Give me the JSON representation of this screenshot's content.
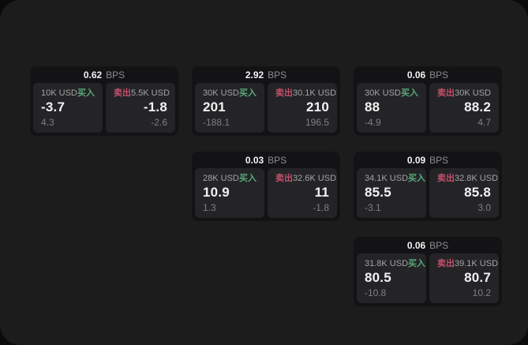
{
  "colors": {
    "page_bg": "#0b0b0b",
    "panel_bg": "#1c1c1d",
    "card_bg": "#131315",
    "tile_bg": "#242427",
    "buy_accent": "#58a87a",
    "sell_accent": "#c2506a",
    "value_text": "#f2f2f3",
    "label_text": "#a2a4a6",
    "muted_text": "#7d7f81",
    "bps_label_text": "#8b8d8f"
  },
  "labels": {
    "buy": "买入",
    "sell": "卖出",
    "bps": "BPS"
  },
  "cards": [
    {
      "bps": "0.62",
      "buy": {
        "amount": "10K USD",
        "value": "-3.7",
        "sub": "4.3"
      },
      "sell": {
        "amount": "5.5K USD",
        "value": "-1.8",
        "sub": "-2.6"
      }
    },
    {
      "bps": "2.92",
      "buy": {
        "amount": "30K USD",
        "value": "201",
        "sub": "-188.1"
      },
      "sell": {
        "amount": "30.1K USD",
        "value": "210",
        "sub": "196.5"
      }
    },
    {
      "bps": "0.06",
      "buy": {
        "amount": "30K USD",
        "value": "88",
        "sub": "-4.9"
      },
      "sell": {
        "amount": "30K USD",
        "value": "88.2",
        "sub": "4.7"
      }
    },
    {
      "bps": "0.03",
      "buy": {
        "amount": "28K USD",
        "value": "10.9",
        "sub": "1.3"
      },
      "sell": {
        "amount": "32.6K USD",
        "value": "11",
        "sub": "-1.8"
      }
    },
    {
      "bps": "0.09",
      "buy": {
        "amount": "34.1K USD",
        "value": "85.5",
        "sub": "-3.1"
      },
      "sell": {
        "amount": "32.8K USD",
        "value": "85.8",
        "sub": "3.0"
      }
    },
    {
      "bps": "0.06",
      "buy": {
        "amount": "31.8K USD",
        "value": "80.5",
        "sub": "-10.8"
      },
      "sell": {
        "amount": "39.1K USD",
        "value": "80.7",
        "sub": "10.2"
      }
    }
  ]
}
